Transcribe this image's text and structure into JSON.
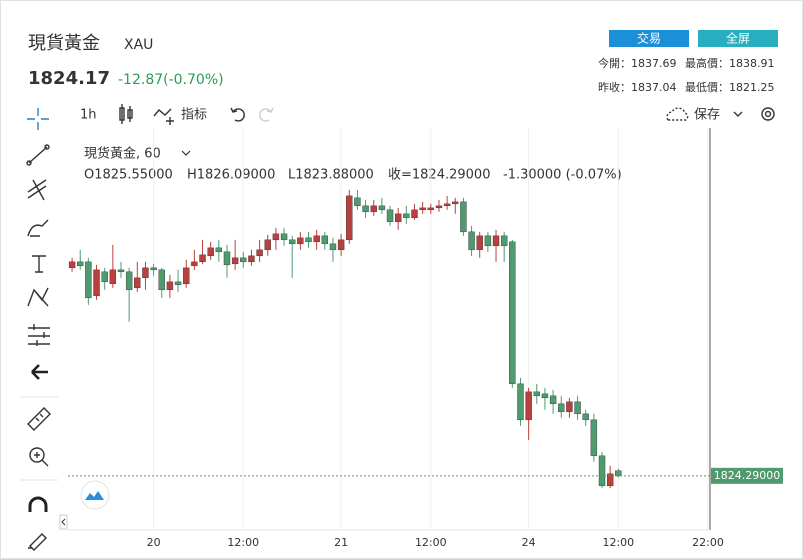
{
  "header": {
    "title": "現貨黃金",
    "symbol": "XAU",
    "price": "1824.17",
    "change": "-12.87(-0.70%)",
    "buttons": [
      "交易",
      "全屏"
    ],
    "stats": [
      "今開：1837.69",
      "最高價：1838.91",
      "昨收：1837.04",
      "最低價：1821.25"
    ]
  },
  "toolbar": {
    "interval": "1h",
    "indicators": "指标",
    "save": "保存"
  },
  "chart_data": {
    "type": "candlestick",
    "legend": [
      "現货黃金, 60",
      "O1825.55000",
      "H1826.09000",
      "L1823.88000",
      "收=1824.29000",
      "-1.30000 (-0.07%)"
    ],
    "up_color": "#b8403f",
    "down_color": "#4f9a6f",
    "grid": "x",
    "xlim": [
      -0.5,
      78
    ],
    "ylim": [
      1810,
      1910
    ],
    "xticks": [
      {
        "value": 10,
        "label": "20"
      },
      {
        "value": 21,
        "label": "12:00"
      },
      {
        "value": 33,
        "label": "21"
      },
      {
        "value": 44,
        "label": "12:00"
      },
      {
        "value": 56,
        "label": "24"
      },
      {
        "value": 67,
        "label": "12:00"
      },
      {
        "value": 78,
        "label": "22:00"
      }
    ],
    "yticks": [
      {
        "value": 1824.29,
        "label": "1824.29000"
      }
    ],
    "open": [
      1876.29,
      1877.79,
      1877.79,
      1869.29,
      1875.29,
      1872.29,
      1875.79,
      1875.29,
      1871.29,
      1873.79,
      1876.29,
      1875.79,
      1870.79,
      1872.79,
      1872.29,
      1876.79,
      1877.79,
      1879.29,
      1881.29,
      1880.29,
      1877.29,
      1878.79,
      1877.79,
      1879.29,
      1880.79,
      1883.29,
      1884.79,
      1883.29,
      1882.29,
      1883.79,
      1882.79,
      1884.29,
      1882.29,
      1880.79,
      1883.29,
      1893.79,
      1891.79,
      1890.29,
      1891.79,
      1890.79,
      1887.79,
      1889.79,
      1888.79,
      1890.79,
      1890.79,
      1891.29,
      1891.79,
      1892.29,
      1892.79,
      1885.29,
      1880.79,
      1884.29,
      1881.79,
      1884.29,
      1882.79,
      1847.29,
      1838.29,
      1845.29,
      1844.79,
      1844.29,
      1842.29,
      1840.29,
      1842.79,
      1839.79,
      1838.29,
      1829.29,
      1821.79,
      1825.55
    ],
    "high": [
      1878.79,
      1880.79,
      1878.79,
      1877.04,
      1876.29,
      1882.04,
      1877.79,
      1876.29,
      1877.79,
      1877.79,
      1877.29,
      1876.29,
      1874.54,
      1875.79,
      1878.29,
      1880.79,
      1883.29,
      1882.79,
      1883.29,
      1882.04,
      1883.29,
      1880.29,
      1880.79,
      1883.29,
      1884.54,
      1886.29,
      1886.29,
      1884.29,
      1885.29,
      1885.29,
      1885.79,
      1885.29,
      1883.79,
      1884.79,
      1895.79,
      1895.79,
      1893.29,
      1893.29,
      1893.79,
      1891.79,
      1891.29,
      1891.79,
      1892.29,
      1892.79,
      1892.29,
      1893.29,
      1894.29,
      1893.79,
      1893.79,
      1886.79,
      1885.29,
      1885.29,
      1885.79,
      1885.29,
      1883.29,
      1848.79,
      1846.29,
      1847.29,
      1846.29,
      1845.79,
      1844.29,
      1843.79,
      1844.29,
      1840.79,
      1839.79,
      1830.29,
      1826.79,
      1826.09
    ],
    "low": [
      1875.29,
      1875.79,
      1867.04,
      1868.29,
      1870.79,
      1871.29,
      1873.79,
      1862.79,
      1870.29,
      1870.79,
      1874.29,
      1868.79,
      1868.79,
      1870.29,
      1871.29,
      1875.79,
      1877.29,
      1878.29,
      1877.79,
      1873.79,
      1875.79,
      1876.29,
      1876.79,
      1877.79,
      1879.29,
      1880.79,
      1881.79,
      1873.79,
      1880.79,
      1881.29,
      1880.79,
      1880.79,
      1877.79,
      1879.29,
      1882.29,
      1890.79,
      1888.79,
      1889.29,
      1889.79,
      1886.79,
      1885.79,
      1887.29,
      1888.29,
      1889.79,
      1889.79,
      1890.29,
      1890.79,
      1889.79,
      1884.29,
      1879.29,
      1878.79,
      1880.29,
      1877.79,
      1877.79,
      1846.29,
      1836.79,
      1833.29,
      1842.29,
      1840.79,
      1839.79,
      1838.79,
      1838.79,
      1838.29,
      1836.79,
      1827.79,
      1821.25,
      1821.25,
      1823.88
    ],
    "close": [
      1877.79,
      1876.79,
      1868.79,
      1875.79,
      1872.79,
      1875.79,
      1875.29,
      1870.79,
      1873.79,
      1876.29,
      1875.79,
      1870.79,
      1872.79,
      1872.04,
      1876.29,
      1877.79,
      1879.54,
      1881.29,
      1880.29,
      1877.04,
      1878.79,
      1877.79,
      1879.29,
      1880.79,
      1883.29,
      1884.79,
      1883.29,
      1882.29,
      1883.79,
      1882.79,
      1884.29,
      1882.29,
      1880.79,
      1883.29,
      1894.29,
      1891.79,
      1890.29,
      1891.79,
      1890.79,
      1887.79,
      1889.79,
      1888.79,
      1890.79,
      1891.29,
      1891.29,
      1891.79,
      1892.29,
      1892.79,
      1885.29,
      1880.79,
      1884.29,
      1881.79,
      1884.29,
      1881.79,
      1847.29,
      1838.29,
      1845.29,
      1844.29,
      1843.79,
      1842.29,
      1840.29,
      1842.79,
      1839.79,
      1838.29,
      1829.29,
      1821.79,
      1824.79,
      1824.29
    ]
  }
}
